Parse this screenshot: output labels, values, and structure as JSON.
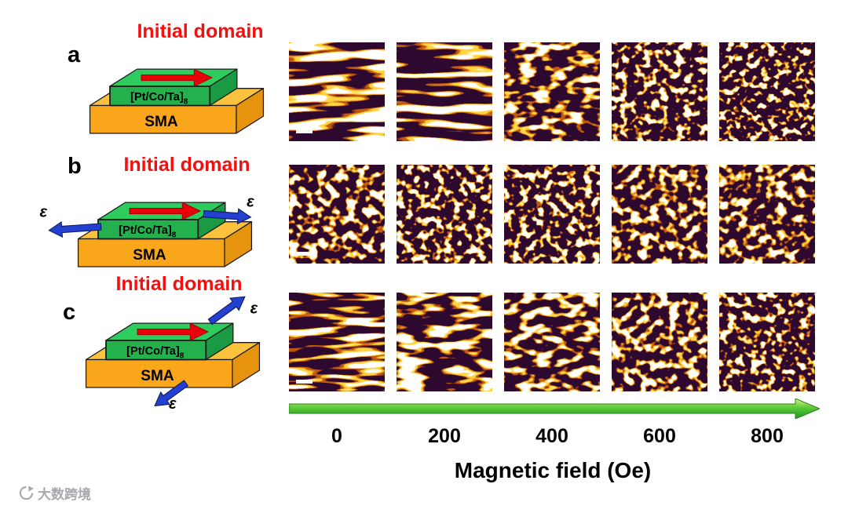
{
  "schematics": [
    {
      "label": "a",
      "initial_domain": "Initial domain",
      "film": "[Pt/Co/Ta]",
      "film_subscript": "8",
      "substrate": "SMA"
    },
    {
      "label": "b",
      "initial_domain": "Initial domain",
      "film": "[Pt/Co/Ta]",
      "film_subscript": "8",
      "substrate": "SMA",
      "strain_symbol": "ε"
    },
    {
      "label": "c",
      "initial_domain": "Initial domain",
      "film": "[Pt/Co/Ta]",
      "film_subscript": "8",
      "substrate": "SMA",
      "strain_symbol": "ε"
    }
  ],
  "mfm": {
    "colormap": {
      "background": "#2d082f",
      "mid": "#c2590f",
      "bright": "#ffd43e",
      "peak": "#ffffff"
    },
    "rows": [
      {
        "row": "a",
        "panels": [
          {
            "field": "0",
            "pattern": "stripes",
            "scale_bar": true
          },
          {
            "field": "200",
            "pattern": "stripes"
          },
          {
            "field": "400",
            "pattern": "broken"
          },
          {
            "field": "600",
            "pattern": "dots"
          },
          {
            "field": "800",
            "pattern": "dots-sparse"
          }
        ]
      },
      {
        "row": "b",
        "panels": [
          {
            "field": "0",
            "pattern": "mixed",
            "scale_bar": true
          },
          {
            "field": "200",
            "pattern": "dots"
          },
          {
            "field": "400",
            "pattern": "dots"
          },
          {
            "field": "600",
            "pattern": "mixed"
          },
          {
            "field": "800",
            "pattern": "mixed"
          }
        ]
      },
      {
        "row": "c",
        "panels": [
          {
            "field": "0",
            "pattern": "stripes-fine",
            "scale_bar": true
          },
          {
            "field": "200",
            "pattern": "wavy"
          },
          {
            "field": "400",
            "pattern": "broken"
          },
          {
            "field": "600",
            "pattern": "mixed"
          },
          {
            "field": "800",
            "pattern": "dots"
          }
        ]
      }
    ]
  },
  "axis": {
    "ticks": [
      "0",
      "200",
      "400",
      "600",
      "800"
    ],
    "label": "Magnetic field (Oe)"
  },
  "colors": {
    "heading_red": "#f50f0f",
    "film_green": "#2ecc5e",
    "substrate_orange": "#f9a61a",
    "domain_arrow_red": "#e8000b",
    "strain_arrow_blue": "#2340d0",
    "axis_arrow_green": "#3fb32b"
  },
  "watermark": {
    "text": "大数跨境"
  }
}
